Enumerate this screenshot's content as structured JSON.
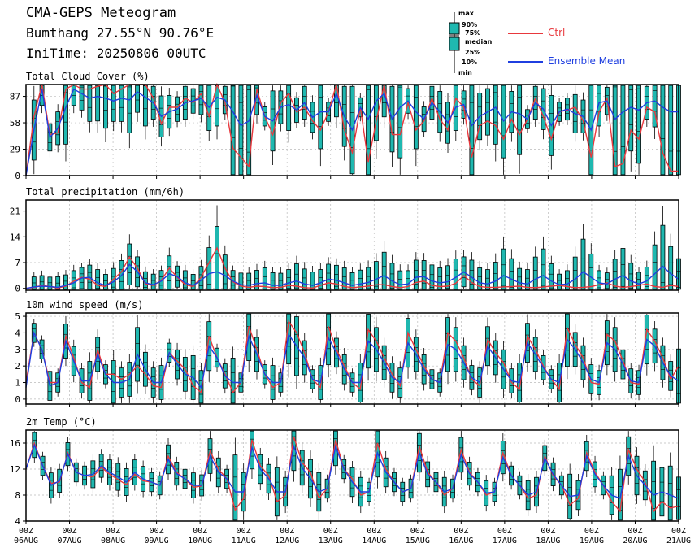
{
  "header": {
    "title": "CMA-GEPS Meteogram",
    "location": "Bumthang 27.55°N 90.76°E",
    "initime": "IniTime: 20250806 00UTC"
  },
  "legend": {
    "box_labels": [
      "max",
      "90%",
      "75%",
      "median",
      "25%",
      "10%",
      "min"
    ],
    "ctrl_label": "Ctrl",
    "mean_label": "Ensemble Mean",
    "colors": {
      "ctrl": "#e8383d",
      "mean": "#1f3fe0",
      "box": "#1fb8b0"
    }
  },
  "x_axis": {
    "tick_hours": [
      "00Z",
      "00Z",
      "00Z",
      "00Z",
      "00Z",
      "00Z",
      "00Z",
      "00Z",
      "00Z",
      "00Z",
      "00Z",
      "00Z",
      "00Z",
      "00Z",
      "00Z",
      "00Z"
    ],
    "tick_dates": [
      "06AUG",
      "07AUG",
      "08AUG",
      "09AUG",
      "10AUG",
      "11AUG",
      "12AUG",
      "13AUG",
      "14AUG",
      "15AUG",
      "16AUG",
      "17AUG",
      "18AUG",
      "19AUG",
      "20AUG",
      "21AUG"
    ]
  },
  "chart_data": [
    {
      "type": "box",
      "title": "Total Cloud Cover (%)",
      "ylim": [
        0,
        100
      ],
      "yticks": [
        0,
        29,
        58,
        87
      ],
      "ctrl": [
        0,
        65,
        100,
        45,
        47,
        95,
        100,
        95,
        95,
        98,
        100,
        90,
        95,
        100,
        100,
        100,
        85,
        57,
        75,
        75,
        85,
        80,
        90,
        65,
        100,
        80,
        30,
        20,
        10,
        95,
        65,
        45,
        80,
        90,
        70,
        75,
        60,
        50,
        70,
        100,
        50,
        25,
        75,
        15,
        60,
        100,
        45,
        45,
        80,
        50,
        60,
        85,
        62,
        50,
        85,
        75,
        20,
        55,
        60,
        55,
        40,
        62,
        45,
        62,
        85,
        65,
        40,
        70,
        72,
        75,
        60,
        20,
        70,
        85,
        10,
        13,
        50,
        40,
        75,
        70,
        25,
        5,
        5
      ],
      "mean": [
        0,
        50,
        95,
        42,
        52,
        75,
        95,
        90,
        85,
        87,
        85,
        82,
        85,
        83,
        92,
        86,
        80,
        65,
        70,
        73,
        80,
        82,
        85,
        75,
        86,
        83,
        70,
        55,
        60,
        88,
        65,
        60,
        75,
        78,
        72,
        80,
        64,
        70,
        70,
        90,
        65,
        50,
        75,
        62,
        82,
        90,
        62,
        75,
        82,
        70,
        62,
        80,
        70,
        58,
        75,
        78,
        55,
        65,
        70,
        75,
        60,
        70,
        68,
        62,
        80,
        73,
        55,
        70,
        73,
        68,
        65,
        50,
        80,
        82,
        62,
        70,
        75,
        72,
        80,
        82,
        75,
        70,
        70
      ]
    },
    {
      "type": "box",
      "title": "Total precipitation (mm/6h)",
      "ylim": [
        -0.5,
        24
      ],
      "yticks": [
        0,
        7,
        14,
        21
      ],
      "ctrl": [
        0,
        0.3,
        0.8,
        0.5,
        0.1,
        0.6,
        2.0,
        3.0,
        2.5,
        0.8,
        0.5,
        2.5,
        4.5,
        8.5,
        5.5,
        1.2,
        0.8,
        2.2,
        5.5,
        3.0,
        1.0,
        0.5,
        3.0,
        7.0,
        11.0,
        5.5,
        1.8,
        0.6,
        0.3,
        0.6,
        0.5,
        0.2,
        0.3,
        0.8,
        0.6,
        0.2,
        0.1,
        0.8,
        1.5,
        1.2,
        0.5,
        0.2,
        0.4,
        0.6,
        1.0,
        1.0,
        0.5,
        0.2,
        0.5,
        1.6,
        2.0,
        0.8,
        0.5,
        0.6,
        1.4,
        3.5,
        1.6,
        0.5,
        0.3,
        0.3,
        0.4,
        0.5,
        0.6,
        0.3,
        0.2,
        0.4,
        0.6,
        0.8,
        0.5,
        0.2,
        0.3,
        0.5,
        1.0,
        1.5,
        0.6,
        0.3,
        0.5,
        0.8,
        1.2,
        0.5,
        0.3,
        0.8,
        0.5
      ],
      "mean": [
        0,
        0.4,
        0.6,
        0.5,
        0.3,
        0.8,
        1.5,
        2.8,
        3.0,
        1.5,
        0.8,
        1.8,
        3.5,
        6.5,
        4.5,
        1.5,
        1.0,
        2.0,
        4.0,
        3.2,
        1.5,
        0.8,
        2.2,
        4.0,
        4.5,
        3.5,
        2.0,
        1.0,
        0.8,
        1.3,
        1.5,
        0.8,
        0.8,
        1.5,
        2.0,
        1.2,
        0.8,
        1.5,
        2.5,
        2.2,
        1.5,
        0.8,
        1.2,
        1.6,
        2.5,
        3.5,
        2.0,
        1.0,
        1.2,
        3.0,
        3.2,
        2.0,
        1.5,
        1.8,
        3.0,
        4.5,
        3.0,
        1.5,
        1.2,
        2.0,
        3.5,
        2.5,
        1.5,
        1.2,
        2.5,
        3.5,
        2.0,
        1.0,
        1.2,
        2.5,
        4.5,
        3.0,
        1.5,
        1.2,
        2.5,
        3.5,
        2.0,
        1.2,
        2.0,
        4.0,
        6.0,
        4.0,
        2.5
      ]
    },
    {
      "type": "box",
      "title": "10m wind speed (m/s)",
      "ylim": [
        -0.3,
        5.2
      ],
      "yticks": [
        0,
        1,
        2,
        3,
        4,
        5
      ],
      "ctrl": [
        1.0,
        4.0,
        3.0,
        1.0,
        1.0,
        3.8,
        2.5,
        1.0,
        0.7,
        3.0,
        1.5,
        1.5,
        1.2,
        1.5,
        2.0,
        1.5,
        0.8,
        0.7,
        2.8,
        2.3,
        1.8,
        0.8,
        0.4,
        3.8,
        2.5,
        1.5,
        0.4,
        1.0,
        4.4,
        3.0,
        1.5,
        0.7,
        1.0,
        4.7,
        4.0,
        2.8,
        1.2,
        0.7,
        4.4,
        3.0,
        2.0,
        1.0,
        0.6,
        4.2,
        3.5,
        2.5,
        1.5,
        0.8,
        4.0,
        3.0,
        2.0,
        1.2,
        1.0,
        4.0,
        3.5,
        2.5,
        1.2,
        0.8,
        3.6,
        2.8,
        2.2,
        1.0,
        0.6,
        3.8,
        3.0,
        2.0,
        1.2,
        0.6,
        4.3,
        3.3,
        2.5,
        1.0,
        0.9,
        3.9,
        3.5,
        2.3,
        1.0,
        0.9,
        4.2,
        3.5,
        2.5,
        1.2,
        2.0
      ],
      "mean": [
        0.7,
        4.0,
        3.0,
        0.8,
        1.0,
        3.5,
        2.3,
        1.1,
        1.1,
        2.7,
        1.5,
        1.0,
        1.0,
        1.2,
        2.7,
        1.8,
        1.0,
        1.0,
        2.8,
        2.1,
        1.5,
        1.3,
        0.7,
        3.2,
        2.5,
        1.4,
        1.0,
        1.0,
        3.8,
        2.7,
        1.5,
        1.0,
        1.0,
        3.9,
        3.2,
        2.5,
        1.2,
        1.0,
        3.7,
        2.8,
        1.8,
        1.0,
        1.0,
        3.5,
        3.0,
        2.2,
        1.3,
        1.0,
        3.4,
        2.7,
        1.8,
        1.2,
        1.0,
        3.3,
        3.0,
        2.2,
        1.3,
        1.0,
        3.2,
        2.5,
        1.8,
        1.1,
        1.0,
        3.4,
        2.7,
        1.9,
        1.2,
        1.0,
        3.6,
        3.0,
        2.2,
        1.2,
        1.0,
        3.4,
        3.0,
        2.1,
        1.1,
        1.0,
        3.6,
        3.2,
        2.2,
        1.4,
        1.1
      ]
    },
    {
      "type": "box",
      "title": "2m Temp (°C)",
      "ylim": [
        4,
        18
      ],
      "yticks": [
        4,
        8,
        12,
        16
      ],
      "ctrl": [
        12,
        16,
        12.5,
        9.8,
        10.0,
        14.5,
        11.5,
        11.0,
        10.8,
        12.3,
        11.2,
        10.4,
        9.6,
        11.2,
        10.2,
        10.0,
        9.5,
        14.0,
        11.5,
        10.5,
        9.2,
        9.4,
        14.8,
        12.0,
        10.5,
        5.7,
        7.5,
        16.5,
        12.5,
        11.0,
        7.0,
        8.0,
        17.0,
        13.0,
        11.5,
        7.5,
        9.0,
        16.5,
        12.0,
        10.5,
        8.0,
        8.5,
        16.0,
        12.0,
        10.0,
        8.5,
        9.0,
        15.5,
        11.5,
        10.0,
        8.0,
        9.0,
        15.0,
        11.5,
        10.0,
        8.0,
        8.5,
        14.5,
        11.0,
        9.5,
        7.5,
        8.0,
        14.0,
        11.0,
        9.5,
        6.5,
        7.5,
        14.5,
        11.5,
        9.5,
        7.0,
        5.5,
        15.0,
        12.0,
        10.0,
        5.5,
        7.0,
        6.0,
        6.3
      ],
      "mean": [
        12,
        15.7,
        12.5,
        9.5,
        10.2,
        14.3,
        11.5,
        11.0,
        11.2,
        12.5,
        11.5,
        10.8,
        10.0,
        11.5,
        10.5,
        10.0,
        9.5,
        13.5,
        11.3,
        10.5,
        9.5,
        9.5,
        14.0,
        11.5,
        10.5,
        8.5,
        8.5,
        15.3,
        12.0,
        10.5,
        8.5,
        8.5,
        15.5,
        12.2,
        10.5,
        8.5,
        9.0,
        15.5,
        12.0,
        10.0,
        8.5,
        8.5,
        14.5,
        11.5,
        10.0,
        8.5,
        9.0,
        14.5,
        11.2,
        10.0,
        8.5,
        9.0,
        14.2,
        11.3,
        10.0,
        8.3,
        8.5,
        13.8,
        11.0,
        9.5,
        8.0,
        8.5,
        13.7,
        11.2,
        9.5,
        7.8,
        8.0,
        14.0,
        11.2,
        9.5,
        8.0,
        7.5,
        14.0,
        11.0,
        9.5,
        8.0,
        8.5,
        8.0,
        7.5
      ]
    }
  ]
}
